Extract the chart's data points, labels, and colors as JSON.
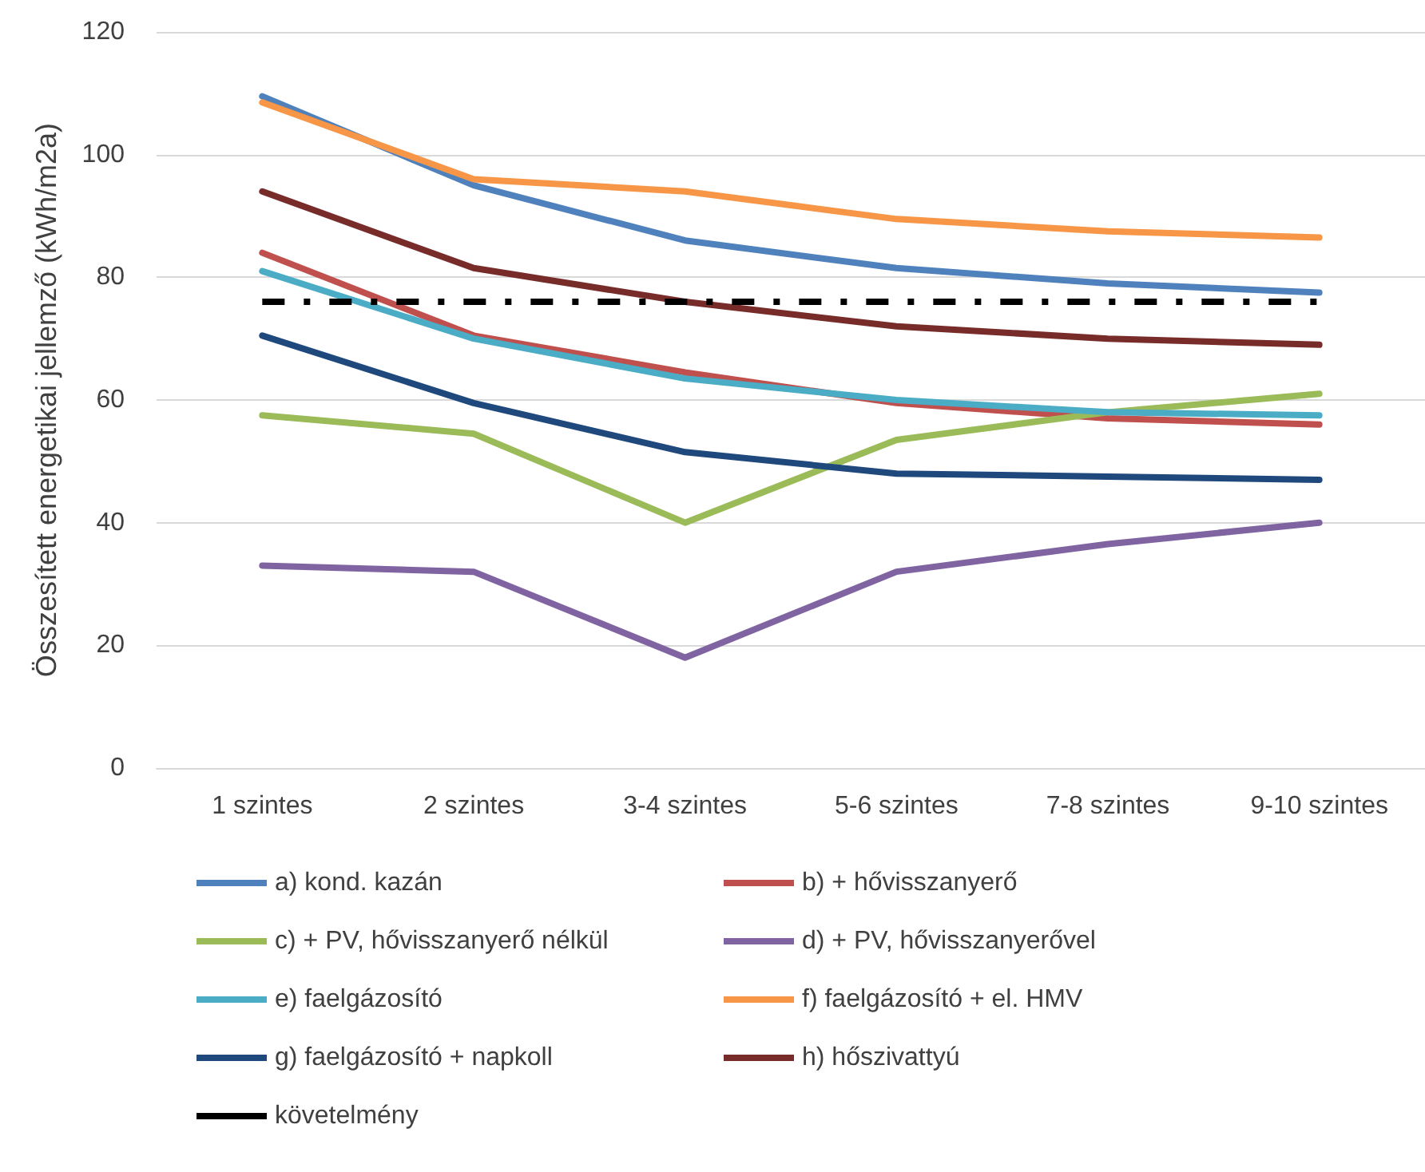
{
  "chart_data": {
    "type": "line",
    "ylabel": "Összesített energetikai jellemző (kWh/m2a)",
    "categories": [
      "1 szintes",
      "2 szintes",
      "3-4 szintes",
      "5-6 szintes",
      "7-8 szintes",
      "9-10 szintes"
    ],
    "ylim": [
      0,
      120
    ],
    "yticks": [
      0,
      20,
      40,
      60,
      80,
      100,
      120
    ],
    "grid": "y",
    "legend": "bottom",
    "marker": "none",
    "line_style": "solid",
    "series": [
      {
        "name": "a) kond. kazán",
        "color": "#4f81bd",
        "values": [
          109.5,
          95,
          86,
          81.5,
          79,
          77.5
        ]
      },
      {
        "name": "b) + hővisszanyerő",
        "color": "#c0504d",
        "values": [
          84,
          70.5,
          64.5,
          59.5,
          57,
          56
        ]
      },
      {
        "name": "c) + PV, hővisszanyerő nélkül",
        "color": "#9bbb59",
        "values": [
          57.5,
          54.5,
          40,
          53.5,
          58,
          61
        ]
      },
      {
        "name": "d) + PV, hővisszanyerővel",
        "color": "#8064a2",
        "values": [
          33,
          32,
          18,
          32,
          36.5,
          40
        ]
      },
      {
        "name": "e) faelgázosító",
        "color": "#4bacc6",
        "values": [
          81,
          70,
          63.5,
          60,
          58,
          57.5
        ]
      },
      {
        "name": "f) faelgázosító + el. HMV",
        "color": "#f79646",
        "values": [
          108.5,
          96,
          94,
          89.5,
          87.5,
          86.5
        ]
      },
      {
        "name": "g) faelgázosító + napkoll",
        "color": "#1f497d",
        "values": [
          70.5,
          59.5,
          51.5,
          48,
          47.5,
          47
        ]
      },
      {
        "name": "h) hőszivattyú",
        "color": "#772c2a",
        "values": [
          94,
          81.5,
          76,
          72,
          70,
          69
        ]
      },
      {
        "name": "követelmény",
        "color": "#000000",
        "line_style": "dashed",
        "values": [
          76,
          76,
          76,
          76,
          76,
          76
        ]
      }
    ]
  }
}
